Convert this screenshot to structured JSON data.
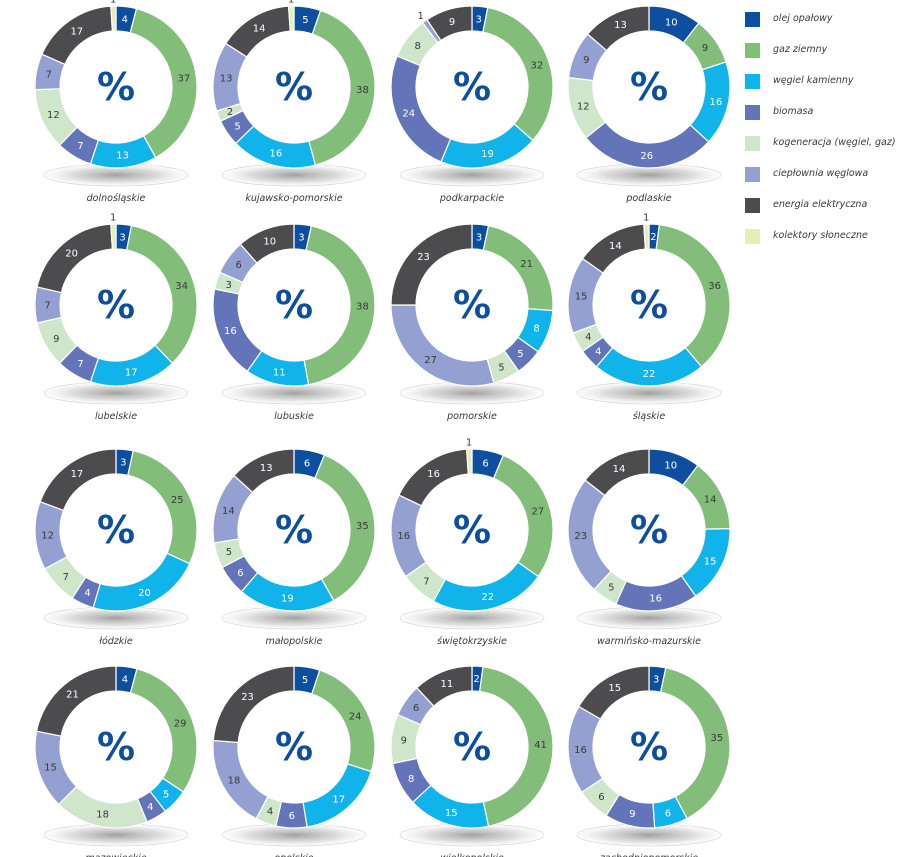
{
  "legend": [
    {
      "name": "olej opałowy",
      "color": "#0d4f9e"
    },
    {
      "name": "gaz ziemny",
      "color": "#82bd7a"
    },
    {
      "name": "węgiel kamienny",
      "color": "#11b4ea"
    },
    {
      "name": "biomasa",
      "color": "#6375b8"
    },
    {
      "name": "kogeneracja (węgiel, gaz)",
      "color": "#cfe6cb"
    },
    {
      "name": "ciepłownia węglowa",
      "color": "#94a0d2"
    },
    {
      "name": "energia elektryczna",
      "color": "#4c4c4e"
    },
    {
      "name": "kolektory słoneczne",
      "color": "#e4efb8"
    }
  ],
  "center_symbol": "%",
  "chart_data": [
    {
      "type": "pie",
      "title": "dolnośląskie",
      "values": [
        4,
        37,
        13,
        7,
        12,
        7,
        17,
        1
      ]
    },
    {
      "type": "pie",
      "title": "kujawsko-pomorskie",
      "values": [
        5,
        38,
        16,
        5,
        2,
        13,
        14,
        1
      ]
    },
    {
      "type": "pie",
      "title": "podkarpackie",
      "values": [
        3,
        32,
        19,
        24,
        8,
        1,
        9,
        0
      ]
    },
    {
      "type": "pie",
      "title": "podlaskie",
      "values": [
        10,
        9,
        16,
        26,
        12,
        9,
        13,
        0
      ]
    },
    {
      "type": "pie",
      "title": "lubelskie",
      "values": [
        3,
        34,
        17,
        7,
        9,
        7,
        20,
        1
      ]
    },
    {
      "type": "pie",
      "title": "lubuskie",
      "values": [
        3,
        38,
        11,
        16,
        3,
        6,
        10,
        0
      ]
    },
    {
      "type": "pie",
      "title": "pomorskie",
      "values": [
        3,
        21,
        8,
        5,
        5,
        27,
        23,
        0
      ]
    },
    {
      "type": "pie",
      "title": "śląskie",
      "values": [
        2,
        36,
        22,
        4,
        4,
        15,
        14,
        1
      ]
    },
    {
      "type": "pie",
      "title": "łódzkie",
      "values": [
        3,
        25,
        20,
        4,
        7,
        12,
        17,
        0
      ]
    },
    {
      "type": "pie",
      "title": "małopolskie",
      "values": [
        6,
        35,
        19,
        6,
        5,
        14,
        13,
        0
      ]
    },
    {
      "type": "pie",
      "title": "świętokrzyskie",
      "values": [
        6,
        27,
        22,
        0,
        7,
        16,
        16,
        1
      ]
    },
    {
      "type": "pie",
      "title": "warmińsko-mazurskie",
      "values": [
        10,
        14,
        15,
        16,
        5,
        23,
        14,
        0
      ]
    },
    {
      "type": "pie",
      "title": "mazowieckie",
      "values": [
        4,
        29,
        5,
        4,
        18,
        15,
        21,
        0
      ]
    },
    {
      "type": "pie",
      "title": "opolskie",
      "values": [
        5,
        24,
        17,
        6,
        4,
        18,
        23,
        0
      ]
    },
    {
      "type": "pie",
      "title": "wielkopolskie",
      "values": [
        2,
        41,
        15,
        8,
        9,
        6,
        11,
        0
      ]
    },
    {
      "type": "pie",
      "title": "zachodniopomorskie",
      "values": [
        3,
        35,
        6,
        9,
        6,
        16,
        15,
        0
      ]
    }
  ]
}
